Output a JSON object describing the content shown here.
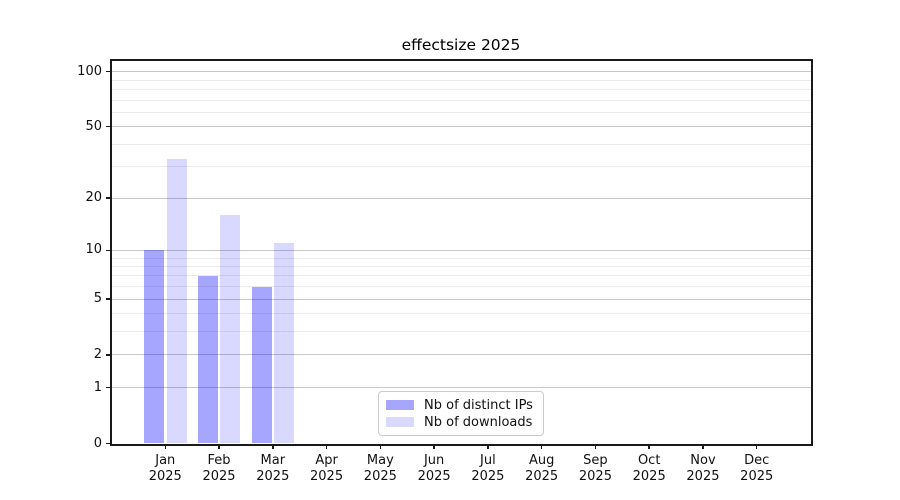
{
  "chart_data": {
    "type": "bar",
    "title": "effectsize 2025",
    "categories": [
      {
        "month": "Jan",
        "year": "2025"
      },
      {
        "month": "Feb",
        "year": "2025"
      },
      {
        "month": "Mar",
        "year": "2025"
      },
      {
        "month": "Apr",
        "year": "2025"
      },
      {
        "month": "May",
        "year": "2025"
      },
      {
        "month": "Jun",
        "year": "2025"
      },
      {
        "month": "Jul",
        "year": "2025"
      },
      {
        "month": "Aug",
        "year": "2025"
      },
      {
        "month": "Sep",
        "year": "2025"
      },
      {
        "month": "Oct",
        "year": "2025"
      },
      {
        "month": "Nov",
        "year": "2025"
      },
      {
        "month": "Dec",
        "year": "2025"
      }
    ],
    "series": [
      {
        "name": "Nb of distinct IPs",
        "color": "rgba(0,0,255,0.35)",
        "values": [
          10,
          7,
          6,
          null,
          null,
          null,
          null,
          null,
          null,
          null,
          null,
          null
        ]
      },
      {
        "name": "Nb of downloads",
        "color": "rgba(0,0,255,0.15)",
        "values": [
          33,
          16,
          11,
          null,
          null,
          null,
          null,
          null,
          null,
          null,
          null,
          null
        ]
      }
    ],
    "y_axis": {
      "scale": "log(1+v)",
      "major_ticks": [
        0,
        1,
        2,
        5,
        10,
        20,
        50,
        100
      ],
      "minor_ticks": [
        3,
        4,
        6,
        7,
        8,
        9,
        30,
        40,
        60,
        70,
        80,
        90
      ],
      "ylim": [
        0,
        114
      ]
    },
    "legend": {
      "position": "bottom-center"
    },
    "colors": {
      "grid_major": "#c8c8c8",
      "grid_minor": "#ebebeb",
      "spine": "#1a1a1a",
      "text": "#111111",
      "background": "#ffffff"
    }
  }
}
